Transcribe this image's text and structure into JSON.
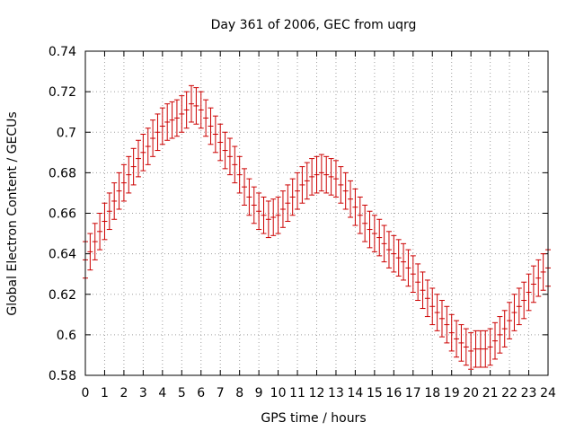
{
  "chart_data": {
    "type": "line",
    "title": "Day 361 of 2006, GEC from uqrg",
    "xlabel": "GPS time / hours",
    "ylabel": "Global Electron Content / GECUs",
    "xlim": [
      0,
      24
    ],
    "ylim": [
      0.58,
      0.74
    ],
    "xticks": [
      "0",
      "1",
      "2",
      "3",
      "4",
      "5",
      "6",
      "7",
      "8",
      "9",
      "10",
      "11",
      "12",
      "13",
      "14",
      "15",
      "16",
      "17",
      "18",
      "19",
      "20",
      "21",
      "22",
      "23",
      "24"
    ],
    "yticks": [
      "0.58",
      "0.6",
      "0.62",
      "0.64",
      "0.66",
      "0.68",
      "0.7",
      "0.72",
      "0.74"
    ],
    "grid": true,
    "series_color": "#cc0000",
    "series": [
      {
        "style": "errorbars",
        "x": [
          0.0,
          0.25,
          0.5,
          0.75,
          1.0,
          1.25,
          1.5,
          1.75,
          2.0,
          2.25,
          2.5,
          2.75,
          3.0,
          3.25,
          3.5,
          3.75,
          4.0,
          4.25,
          4.5,
          4.75,
          5.0,
          5.25,
          5.5,
          5.75,
          6.0,
          6.25,
          6.5,
          6.75,
          7.0,
          7.25,
          7.5,
          7.75,
          8.0,
          8.25,
          8.5,
          8.75,
          9.0,
          9.25,
          9.5,
          9.75,
          10.0,
          10.25,
          10.5,
          10.75,
          11.0,
          11.25,
          11.5,
          11.75,
          12.0,
          12.25,
          12.5,
          12.75,
          13.0,
          13.25,
          13.5,
          13.75,
          14.0,
          14.25,
          14.5,
          14.75,
          15.0,
          15.25,
          15.5,
          15.75,
          16.0,
          16.25,
          16.5,
          16.75,
          17.0,
          17.25,
          17.5,
          17.75,
          18.0,
          18.25,
          18.5,
          18.75,
          19.0,
          19.25,
          19.5,
          19.75,
          20.0,
          20.25,
          20.5,
          20.75,
          21.0,
          21.25,
          21.5,
          21.75,
          22.0,
          22.25,
          22.5,
          22.75,
          23.0,
          23.25,
          23.5,
          23.75,
          24.0
        ],
        "y": [
          0.637,
          0.641,
          0.646,
          0.651,
          0.656,
          0.661,
          0.666,
          0.671,
          0.675,
          0.679,
          0.683,
          0.687,
          0.69,
          0.693,
          0.697,
          0.7,
          0.703,
          0.705,
          0.706,
          0.707,
          0.709,
          0.711,
          0.714,
          0.713,
          0.711,
          0.707,
          0.703,
          0.699,
          0.695,
          0.691,
          0.688,
          0.684,
          0.679,
          0.673,
          0.668,
          0.664,
          0.661,
          0.659,
          0.657,
          0.658,
          0.659,
          0.662,
          0.665,
          0.668,
          0.671,
          0.674,
          0.676,
          0.678,
          0.679,
          0.68,
          0.679,
          0.678,
          0.677,
          0.674,
          0.671,
          0.667,
          0.663,
          0.659,
          0.655,
          0.652,
          0.65,
          0.648,
          0.645,
          0.642,
          0.64,
          0.638,
          0.636,
          0.633,
          0.63,
          0.626,
          0.622,
          0.618,
          0.614,
          0.611,
          0.608,
          0.605,
          0.601,
          0.598,
          0.596,
          0.594,
          0.592,
          0.593,
          0.593,
          0.593,
          0.594,
          0.597,
          0.6,
          0.603,
          0.607,
          0.611,
          0.614,
          0.617,
          0.621,
          0.625,
          0.628,
          0.631,
          0.633
        ],
        "err": 0.009
      }
    ]
  }
}
